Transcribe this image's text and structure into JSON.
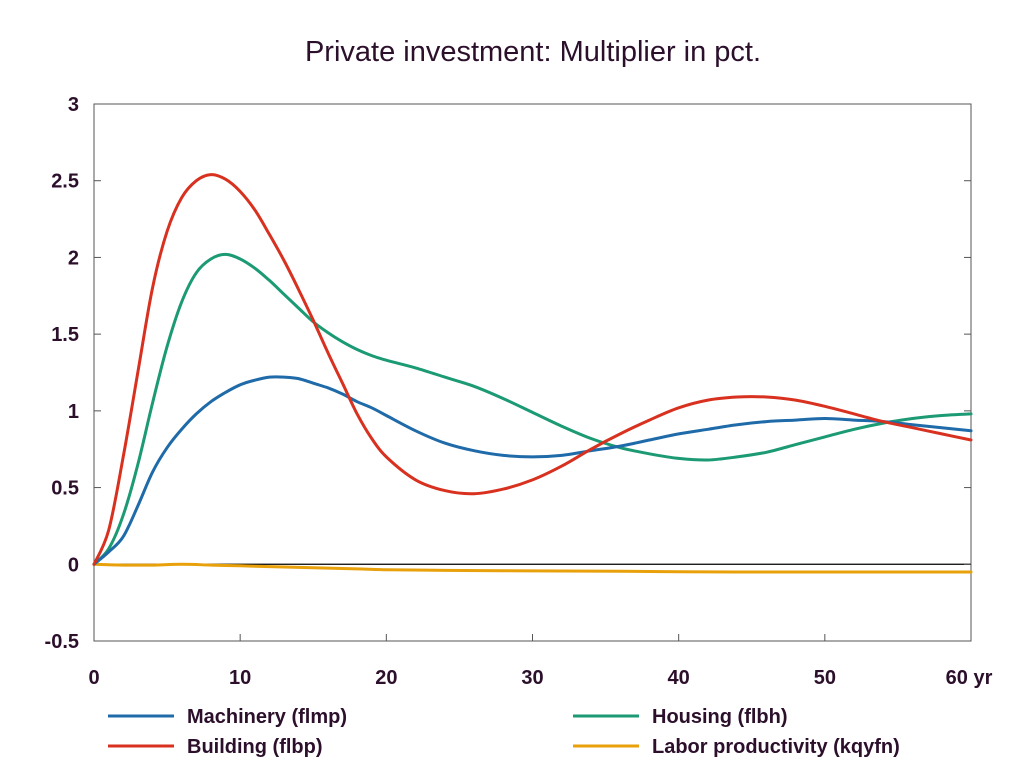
{
  "chart_data": {
    "type": "line",
    "title": "Private investment: Multiplier in pct.",
    "xlabel": "",
    "ylabel": "",
    "xlim": [
      0,
      60
    ],
    "ylim": [
      -0.5,
      3
    ],
    "x_ticks": [
      {
        "value": 0,
        "label": "0"
      },
      {
        "value": 10,
        "label": "10"
      },
      {
        "value": 20,
        "label": "20"
      },
      {
        "value": 30,
        "label": "30"
      },
      {
        "value": 40,
        "label": "40"
      },
      {
        "value": 50,
        "label": "50"
      },
      {
        "value": 60,
        "label": "60 yr"
      }
    ],
    "y_ticks": [
      {
        "value": 3,
        "label": "3"
      },
      {
        "value": 2.5,
        "label": "2.5"
      },
      {
        "value": 2,
        "label": "2"
      },
      {
        "value": 1.5,
        "label": "1.5"
      },
      {
        "value": 1,
        "label": "1"
      },
      {
        "value": 0.5,
        "label": "0.5"
      },
      {
        "value": 0,
        "label": "0"
      },
      {
        "value": -0.5,
        "label": "-0.5"
      }
    ],
    "grid": false,
    "legend_position": "bottom",
    "series": [
      {
        "name": "Machinery (flmp)",
        "color": "#1f6aa8",
        "points": [
          [
            0,
            0
          ],
          [
            1,
            0.08
          ],
          [
            2,
            0.18
          ],
          [
            3,
            0.38
          ],
          [
            4,
            0.6
          ],
          [
            5,
            0.76
          ],
          [
            6,
            0.88
          ],
          [
            7,
            0.98
          ],
          [
            8,
            1.06
          ],
          [
            9,
            1.12
          ],
          [
            10,
            1.17
          ],
          [
            11,
            1.2
          ],
          [
            12,
            1.22
          ],
          [
            13,
            1.22
          ],
          [
            14,
            1.21
          ],
          [
            15,
            1.18
          ],
          [
            16,
            1.15
          ],
          [
            17,
            1.11
          ],
          [
            18,
            1.06
          ],
          [
            19,
            1.02
          ],
          [
            20,
            0.97
          ],
          [
            22,
            0.87
          ],
          [
            24,
            0.79
          ],
          [
            26,
            0.74
          ],
          [
            28,
            0.71
          ],
          [
            30,
            0.7
          ],
          [
            32,
            0.71
          ],
          [
            34,
            0.74
          ],
          [
            36,
            0.77
          ],
          [
            38,
            0.81
          ],
          [
            40,
            0.85
          ],
          [
            42,
            0.88
          ],
          [
            44,
            0.91
          ],
          [
            46,
            0.93
          ],
          [
            48,
            0.94
          ],
          [
            50,
            0.95
          ],
          [
            52,
            0.94
          ],
          [
            54,
            0.93
          ],
          [
            56,
            0.91
          ],
          [
            58,
            0.89
          ],
          [
            60,
            0.87
          ]
        ]
      },
      {
        "name": "Building (flbp)",
        "color": "#d8311f",
        "points": [
          [
            0,
            0
          ],
          [
            1,
            0.22
          ],
          [
            2,
            0.7
          ],
          [
            3,
            1.25
          ],
          [
            4,
            1.8
          ],
          [
            5,
            2.17
          ],
          [
            6,
            2.39
          ],
          [
            7,
            2.5
          ],
          [
            8,
            2.54
          ],
          [
            9,
            2.51
          ],
          [
            10,
            2.43
          ],
          [
            11,
            2.31
          ],
          [
            12,
            2.15
          ],
          [
            13,
            1.98
          ],
          [
            14,
            1.79
          ],
          [
            15,
            1.59
          ],
          [
            16,
            1.38
          ],
          [
            17,
            1.18
          ],
          [
            18,
            0.98
          ],
          [
            19,
            0.82
          ],
          [
            20,
            0.7
          ],
          [
            22,
            0.55
          ],
          [
            24,
            0.48
          ],
          [
            26,
            0.46
          ],
          [
            28,
            0.49
          ],
          [
            30,
            0.55
          ],
          [
            32,
            0.64
          ],
          [
            34,
            0.75
          ],
          [
            36,
            0.85
          ],
          [
            38,
            0.94
          ],
          [
            40,
            1.02
          ],
          [
            42,
            1.07
          ],
          [
            44,
            1.09
          ],
          [
            46,
            1.09
          ],
          [
            48,
            1.07
          ],
          [
            50,
            1.03
          ],
          [
            52,
            0.98
          ],
          [
            54,
            0.93
          ],
          [
            56,
            0.89
          ],
          [
            58,
            0.85
          ],
          [
            60,
            0.81
          ]
        ]
      },
      {
        "name": "Housing (flbh)",
        "color": "#1b9a73",
        "points": [
          [
            0,
            0
          ],
          [
            1,
            0.1
          ],
          [
            2,
            0.32
          ],
          [
            3,
            0.65
          ],
          [
            4,
            1.05
          ],
          [
            5,
            1.42
          ],
          [
            6,
            1.71
          ],
          [
            7,
            1.9
          ],
          [
            8,
            1.99
          ],
          [
            9,
            2.02
          ],
          [
            10,
            1.99
          ],
          [
            11,
            1.93
          ],
          [
            12,
            1.85
          ],
          [
            13,
            1.76
          ],
          [
            14,
            1.67
          ],
          [
            15,
            1.58
          ],
          [
            16,
            1.51
          ],
          [
            17,
            1.45
          ],
          [
            18,
            1.4
          ],
          [
            19,
            1.36
          ],
          [
            20,
            1.33
          ],
          [
            22,
            1.28
          ],
          [
            24,
            1.22
          ],
          [
            26,
            1.16
          ],
          [
            28,
            1.08
          ],
          [
            30,
            0.99
          ],
          [
            32,
            0.9
          ],
          [
            34,
            0.82
          ],
          [
            36,
            0.76
          ],
          [
            38,
            0.72
          ],
          [
            40,
            0.69
          ],
          [
            42,
            0.68
          ],
          [
            44,
            0.7
          ],
          [
            46,
            0.73
          ],
          [
            48,
            0.78
          ],
          [
            50,
            0.83
          ],
          [
            52,
            0.88
          ],
          [
            54,
            0.92
          ],
          [
            56,
            0.95
          ],
          [
            58,
            0.97
          ],
          [
            60,
            0.98
          ]
        ]
      },
      {
        "name": "Labor productivity (kqyfn)",
        "color": "#e8a10b",
        "points": [
          [
            0,
            0
          ],
          [
            2,
            -0.005
          ],
          [
            4,
            -0.005
          ],
          [
            6,
            0
          ],
          [
            8,
            -0.005
          ],
          [
            10,
            -0.01
          ],
          [
            12,
            -0.015
          ],
          [
            14,
            -0.02
          ],
          [
            16,
            -0.025
          ],
          [
            18,
            -0.03
          ],
          [
            20,
            -0.035
          ],
          [
            24,
            -0.04
          ],
          [
            28,
            -0.042
          ],
          [
            32,
            -0.044
          ],
          [
            36,
            -0.046
          ],
          [
            40,
            -0.048
          ],
          [
            44,
            -0.05
          ],
          [
            48,
            -0.05
          ],
          [
            52,
            -0.05
          ],
          [
            56,
            -0.05
          ],
          [
            60,
            -0.05
          ]
        ]
      }
    ]
  }
}
